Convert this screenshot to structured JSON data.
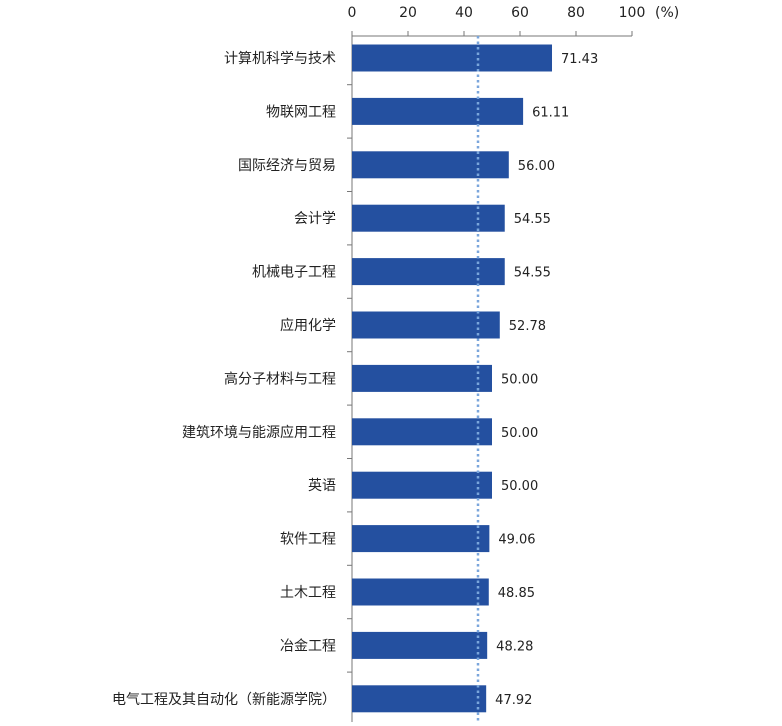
{
  "chart_data": {
    "type": "bar",
    "orientation": "horizontal",
    "categories": [
      "计算机科学与技术",
      "物联网工程",
      "国际经济与贸易",
      "会计学",
      "机械电子工程",
      "应用化学",
      "高分子材料与工程",
      "建筑环境与能源应用工程",
      "英语",
      "软件工程",
      "土木工程",
      "冶金工程",
      "电气工程及其自动化（新能源学院）"
    ],
    "values": [
      71.43,
      61.11,
      56.0,
      54.55,
      54.55,
      52.78,
      50.0,
      50.0,
      50.0,
      49.06,
      48.85,
      48.28,
      47.92
    ],
    "value_labels": [
      "71.43",
      "61.11",
      "56.00",
      "54.55",
      "54.55",
      "52.78",
      "50.00",
      "50.00",
      "50.00",
      "49.06",
      "48.85",
      "48.28",
      "47.92"
    ],
    "xlim": [
      0,
      100
    ],
    "x_ticks": [
      "0",
      "20",
      "40",
      "60",
      "80",
      "100"
    ],
    "x_unit": "(%)",
    "x_axis_position": "top",
    "reference_line": 45,
    "bar_color": "#2450a0",
    "reference_line_color": "#7aa6dc",
    "grid": false,
    "legend": "none"
  }
}
